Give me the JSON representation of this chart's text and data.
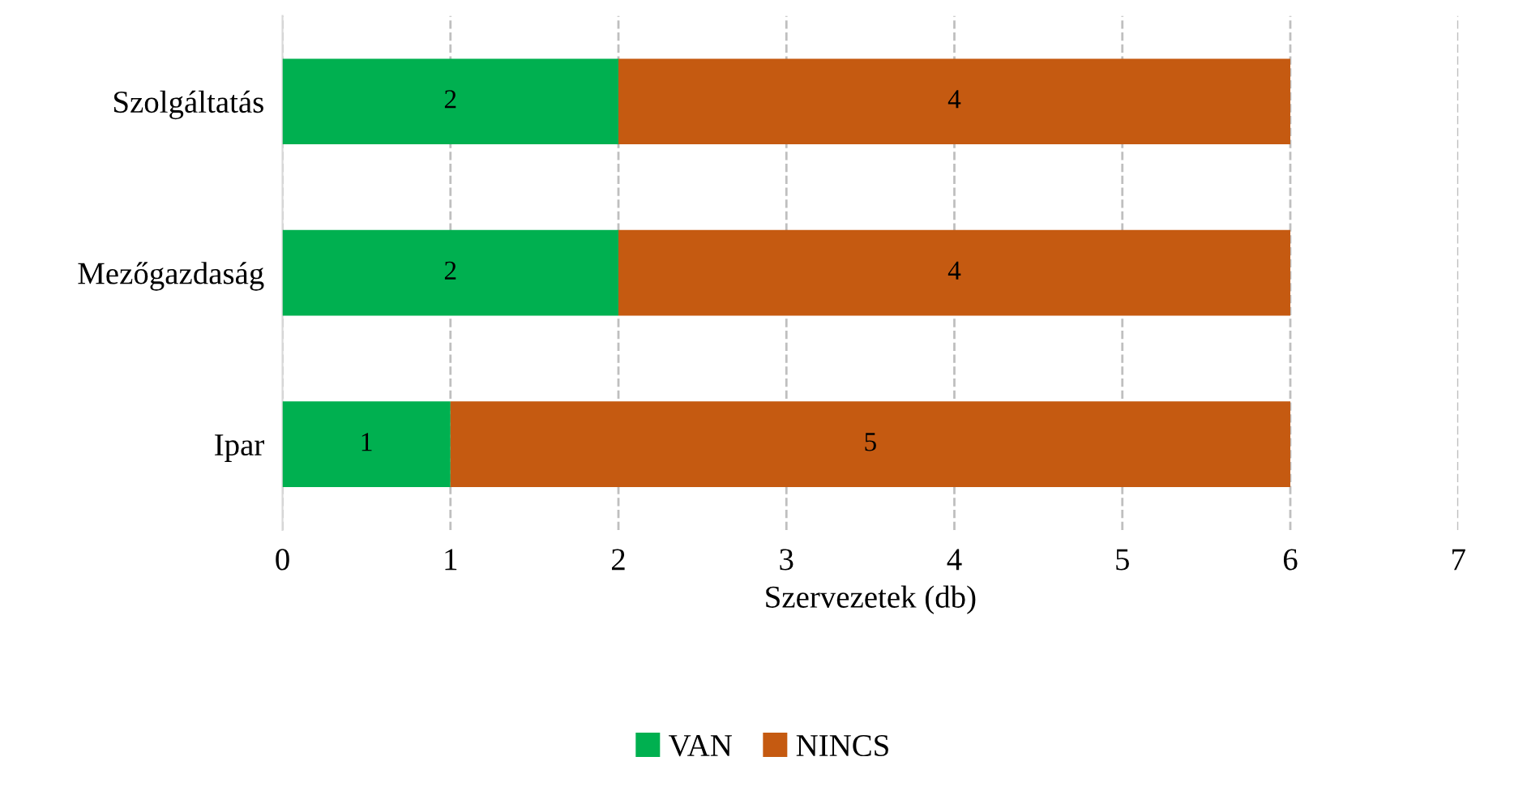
{
  "chart_data": {
    "type": "bar",
    "orientation": "horizontal",
    "stacked": true,
    "xlabel": "Szervezetek (db)",
    "categories": [
      "Szolgáltatás",
      "Mezőgazdaság",
      "Ipar"
    ],
    "series": [
      {
        "name": "VAN",
        "color": "#00b050",
        "values": [
          2,
          2,
          1
        ]
      },
      {
        "name": "NINCS",
        "color": "#c55a11",
        "values": [
          4,
          4,
          5
        ]
      }
    ],
    "xlim": [
      0,
      7
    ],
    "xticks": [
      0,
      1,
      2,
      3,
      4,
      5,
      6,
      7
    ],
    "grid": "x",
    "legend": "bottom",
    "data_labels": true
  }
}
